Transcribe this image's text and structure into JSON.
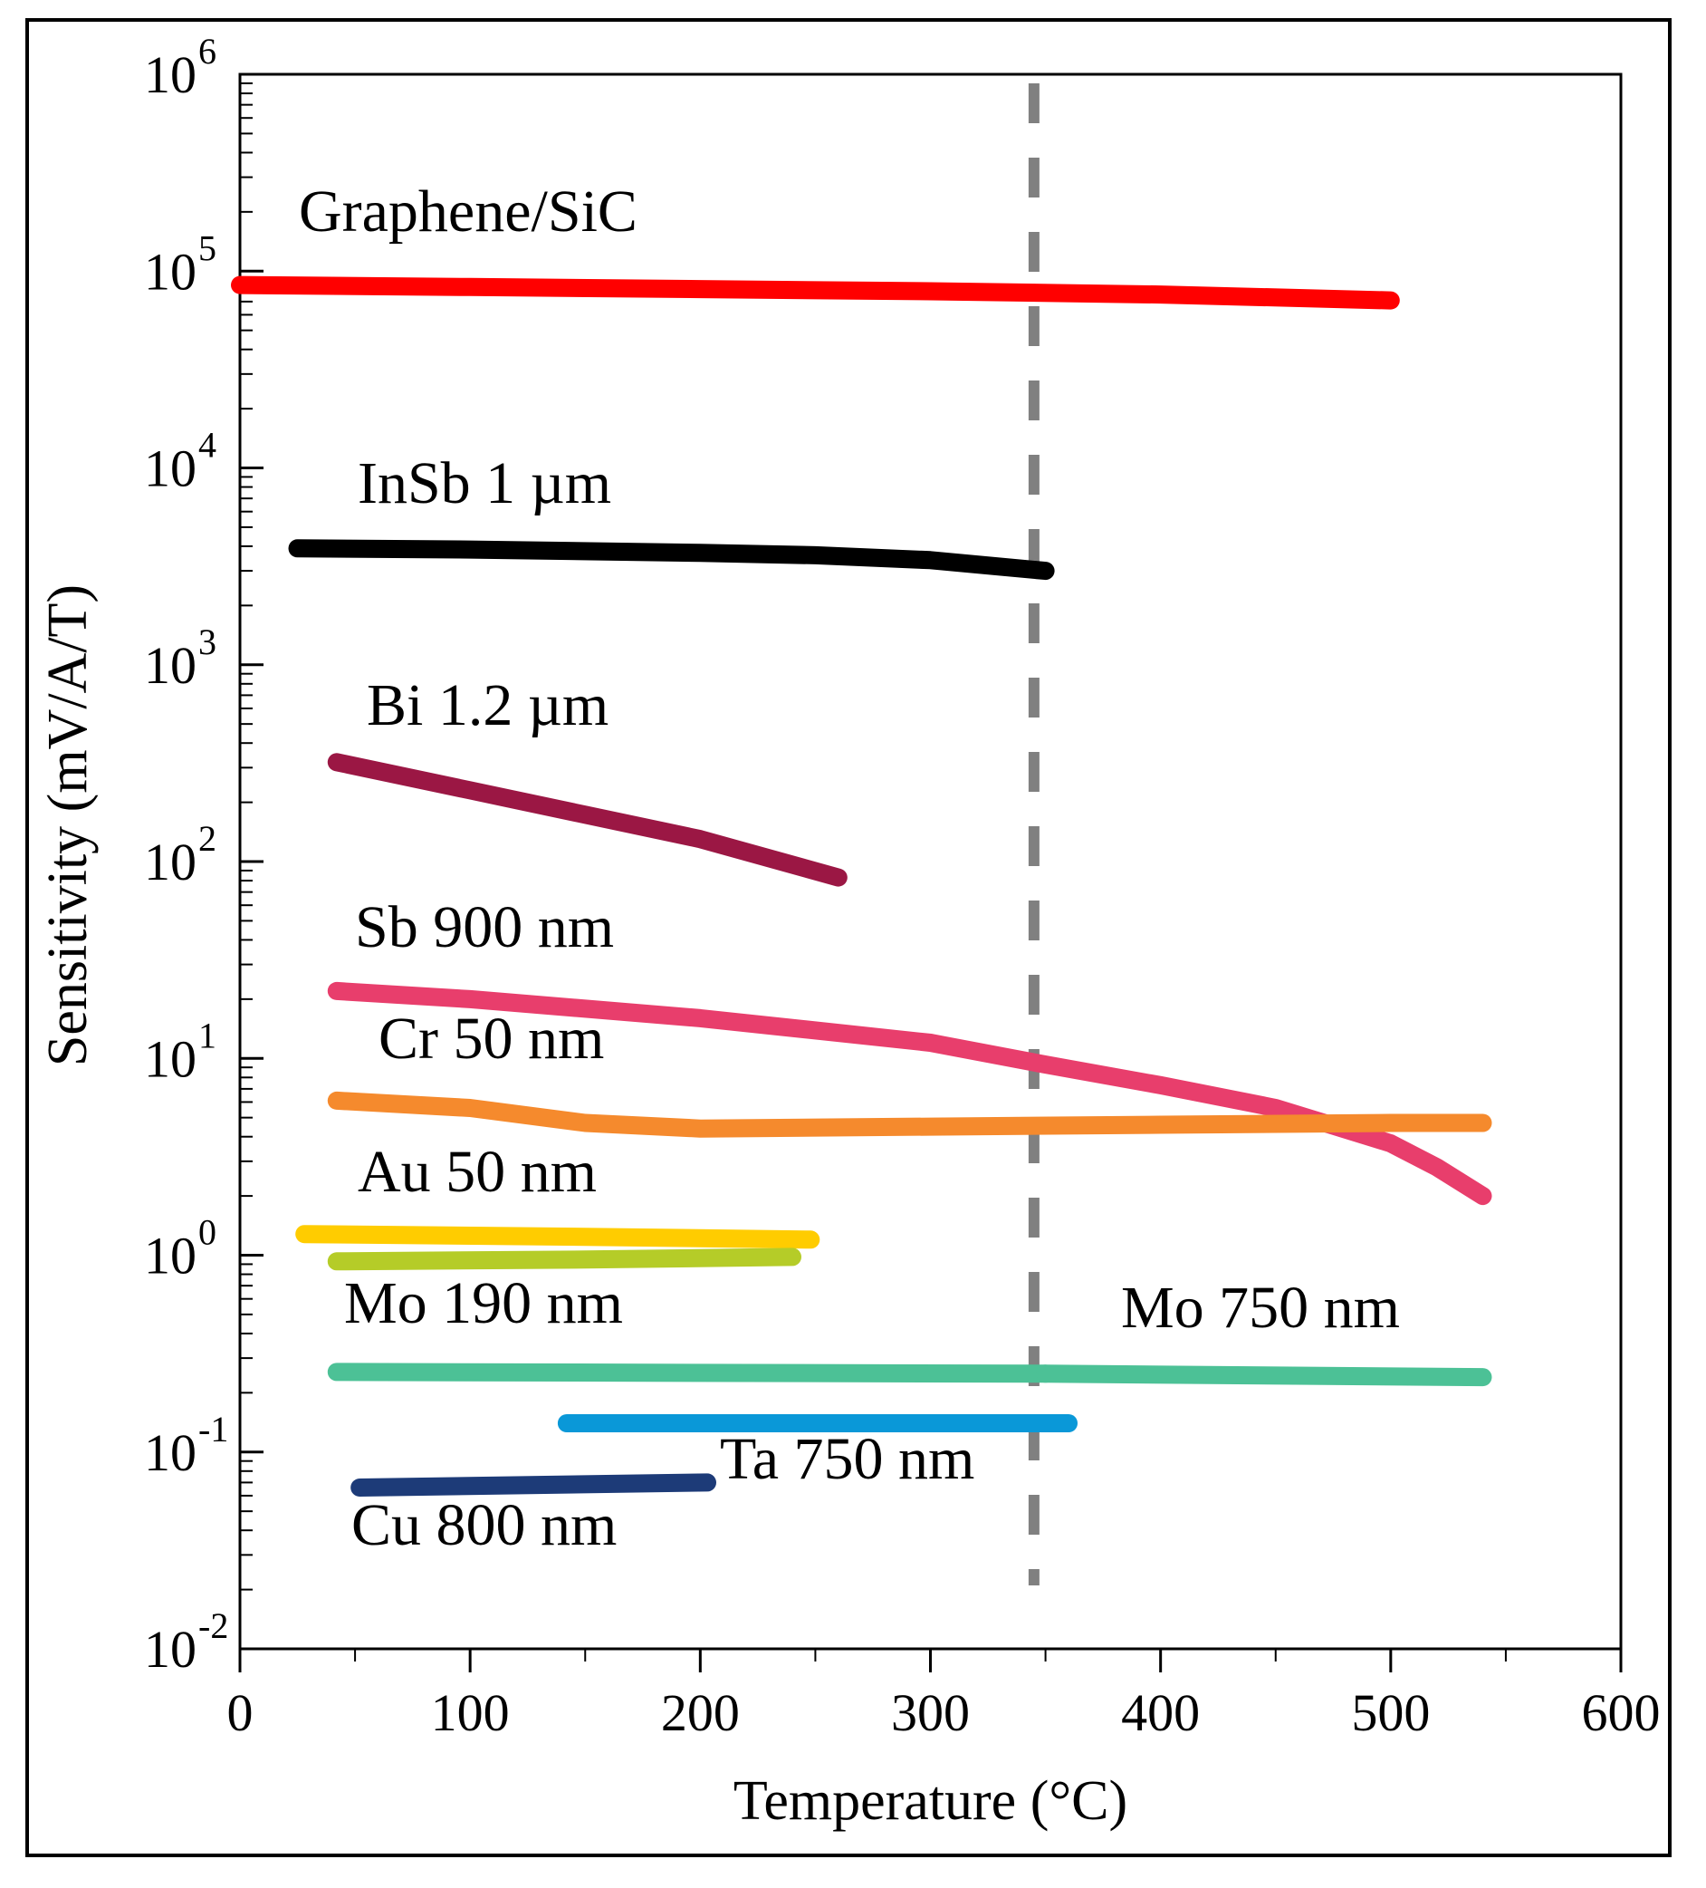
{
  "chart_data": {
    "type": "line",
    "title": "",
    "xlabel": "Temperature (°C)",
    "ylabel": "Sensitivity (mV/A/T)",
    "xlim": [
      0,
      600
    ],
    "ylim": [
      0.01,
      1000000
    ],
    "yscale": "log",
    "x_ticks": [
      0,
      100,
      200,
      300,
      400,
      500,
      600
    ],
    "x_tick_labels": [
      "0",
      "100",
      "200",
      "300",
      "400",
      "500",
      "600"
    ],
    "y_ticks": [
      {
        "value": 0.01,
        "base": "10",
        "exp": "-2"
      },
      {
        "value": 0.1,
        "base": "10",
        "exp": "-1"
      },
      {
        "value": 1,
        "base": "10",
        "exp": "0"
      },
      {
        "value": 10,
        "base": "10",
        "exp": "1"
      },
      {
        "value": 100,
        "base": "10",
        "exp": "2"
      },
      {
        "value": 1000,
        "base": "10",
        "exp": "3"
      },
      {
        "value": 10000,
        "base": "10",
        "exp": "4"
      },
      {
        "value": 100000,
        "base": "10",
        "exp": "5"
      },
      {
        "value": 1000000,
        "base": "10",
        "exp": "6"
      }
    ],
    "reference_line": {
      "x": 345,
      "style": "dashed",
      "color": "#808080"
    },
    "series": [
      {
        "name": "Graphene/SiC",
        "color": "#ff0000",
        "x": [
          0,
          100,
          200,
          300,
          400,
          500
        ],
        "y": [
          85000,
          83000,
          81000,
          79000,
          76000,
          71000
        ]
      },
      {
        "name": "InSb 1 µm",
        "color": "#000000",
        "x": [
          25,
          100,
          200,
          250,
          300,
          350
        ],
        "y": [
          3900,
          3850,
          3700,
          3600,
          3400,
          3000
        ]
      },
      {
        "name": "Bi 1.2 µm",
        "color": "#9b1744",
        "x": [
          42,
          100,
          200,
          260
        ],
        "y": [
          320,
          230,
          130,
          83
        ]
      },
      {
        "name": "Sb 900 nm",
        "color": "#e83e6c",
        "x": [
          42,
          100,
          200,
          300,
          350,
          400,
          450,
          500,
          520,
          540
        ],
        "y": [
          22,
          20,
          16,
          12,
          9.3,
          7.3,
          5.6,
          3.7,
          2.8,
          2.0
        ]
      },
      {
        "name": "Cr 50 nm",
        "color": "#f58a2d",
        "x": [
          42,
          100,
          150,
          200,
          300,
          400,
          500,
          540
        ],
        "y": [
          6.1,
          5.6,
          4.7,
          4.4,
          4.5,
          4.6,
          4.7,
          4.7
        ]
      },
      {
        "name": "Au 50 nm",
        "color": "#ffcc00",
        "x": [
          28,
          150,
          248
        ],
        "y": [
          1.28,
          1.24,
          1.2
        ]
      },
      {
        "name": "",
        "color": "#b5cc28",
        "x": [
          42,
          150,
          240
        ],
        "y": [
          0.93,
          0.95,
          0.98
        ]
      },
      {
        "name": "Mo 190 nm",
        "color": "#4cc196",
        "x": [
          42,
          350
        ],
        "y": [
          0.255,
          0.25
        ]
      },
      {
        "name": "Mo 750 nm",
        "color": "#4cc196",
        "x": [
          350,
          540
        ],
        "y": [
          0.25,
          0.24
        ]
      },
      {
        "name": "Ta 750 nm",
        "color": "#0a98d8",
        "x": [
          142,
          360
        ],
        "y": [
          0.14,
          0.14
        ]
      },
      {
        "name": "Cu 800 nm",
        "color": "#1d3b78",
        "x": [
          52,
          203
        ],
        "y": [
          0.066,
          0.07
        ]
      }
    ]
  }
}
